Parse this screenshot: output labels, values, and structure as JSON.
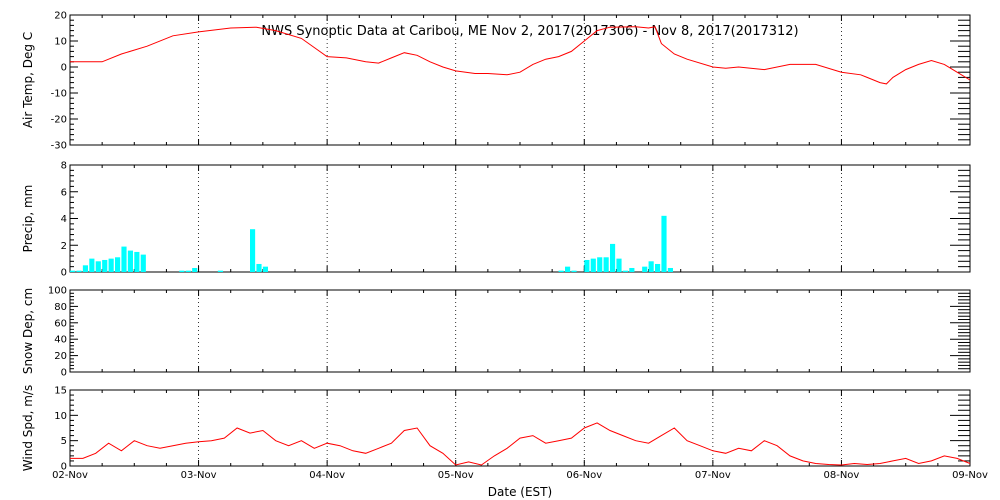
{
  "chart_data": {
    "type": "multi-panel time series",
    "title": "NWS Synoptic Data at Caribou, ME   Nov  2, 2017(2017306) - Nov  8, 2017(2017312)",
    "xlabel": "Date (EST)",
    "x_tick_labels": [
      "02-Nov",
      "03-Nov",
      "04-Nov",
      "05-Nov",
      "06-Nov",
      "07-Nov",
      "08-Nov",
      "09-Nov"
    ],
    "xlim_days": [
      0,
      7
    ],
    "grid": "dotted vertical lines at each day",
    "colors": {
      "temperature": "#ff0000",
      "wind": "#ff0000",
      "precip": "#00ffff",
      "axes": "#000000"
    },
    "panels": [
      {
        "id": "temp",
        "type": "line",
        "ylabel": "Air Temp, Deg C",
        "ylim": [
          -30,
          20
        ],
        "y_ticks": [
          -30,
          -20,
          -10,
          0,
          10,
          20
        ],
        "series": [
          {
            "values": [
              [
                0,
                2
              ],
              [
                0.25,
                2
              ],
              [
                0.4,
                5
              ],
              [
                0.6,
                8
              ],
              [
                0.8,
                12
              ],
              [
                1.0,
                13.5
              ],
              [
                1.25,
                15
              ],
              [
                1.45,
                15.3
              ],
              [
                1.6,
                14
              ],
              [
                1.8,
                11
              ],
              [
                2.0,
                4
              ],
              [
                2.15,
                3.5
              ],
              [
                2.3,
                2
              ],
              [
                2.4,
                1.5
              ],
              [
                2.5,
                3.5
              ],
              [
                2.6,
                5.5
              ],
              [
                2.7,
                4.5
              ],
              [
                2.8,
                2
              ],
              [
                2.9,
                0
              ],
              [
                3.0,
                -1.5
              ],
              [
                3.15,
                -2.5
              ],
              [
                3.25,
                -2.5
              ],
              [
                3.4,
                -3
              ],
              [
                3.5,
                -2
              ],
              [
                3.6,
                1
              ],
              [
                3.7,
                3
              ],
              [
                3.8,
                4
              ],
              [
                3.9,
                6
              ],
              [
                4.0,
                10
              ],
              [
                4.1,
                14
              ],
              [
                4.2,
                15.3
              ],
              [
                4.4,
                15.5
              ],
              [
                4.5,
                15
              ],
              [
                4.55,
                15.5
              ],
              [
                4.6,
                9
              ],
              [
                4.7,
                5
              ],
              [
                4.8,
                3
              ],
              [
                5.0,
                0
              ],
              [
                5.1,
                -0.5
              ],
              [
                5.2,
                0
              ],
              [
                5.4,
                -1
              ],
              [
                5.6,
                1
              ],
              [
                5.8,
                1
              ],
              [
                6.0,
                -2
              ],
              [
                6.15,
                -3
              ],
              [
                6.2,
                -4
              ],
              [
                6.3,
                -6
              ],
              [
                6.35,
                -6.5
              ],
              [
                6.4,
                -4
              ],
              [
                6.5,
                -1
              ],
              [
                6.6,
                1
              ],
              [
                6.7,
                2.5
              ],
              [
                6.8,
                1
              ],
              [
                6.9,
                -2
              ],
              [
                7.0,
                -5
              ]
            ]
          }
        ]
      },
      {
        "id": "precip",
        "type": "bar",
        "ylabel": "Precip, mm",
        "ylim": [
          0,
          8
        ],
        "y_ticks": [
          0,
          2,
          4,
          6,
          8
        ],
        "bar_width_days": 0.04,
        "series": [
          {
            "values": [
              [
                0.0,
                0.1
              ],
              [
                0.05,
                0.1
              ],
              [
                0.1,
                0.5
              ],
              [
                0.15,
                1.0
              ],
              [
                0.2,
                0.8
              ],
              [
                0.25,
                0.9
              ],
              [
                0.3,
                1.0
              ],
              [
                0.35,
                1.1
              ],
              [
                0.4,
                1.9
              ],
              [
                0.45,
                1.6
              ],
              [
                0.5,
                1.5
              ],
              [
                0.55,
                1.3
              ],
              [
                0.85,
                0.1
              ],
              [
                0.9,
                0.1
              ],
              [
                0.95,
                0.3
              ],
              [
                1.15,
                0.1
              ],
              [
                1.4,
                3.2
              ],
              [
                1.45,
                0.6
              ],
              [
                1.5,
                0.4
              ],
              [
                3.8,
                0.1
              ],
              [
                3.85,
                0.4
              ],
              [
                3.9,
                0.1
              ],
              [
                4.0,
                0.9
              ],
              [
                4.05,
                1.0
              ],
              [
                4.1,
                1.1
              ],
              [
                4.15,
                1.1
              ],
              [
                4.2,
                2.1
              ],
              [
                4.25,
                1.0
              ],
              [
                4.3,
                0.1
              ],
              [
                4.35,
                0.3
              ],
              [
                4.45,
                0.4
              ],
              [
                4.5,
                0.8
              ],
              [
                4.55,
                0.6
              ],
              [
                4.6,
                4.2
              ],
              [
                4.65,
                0.3
              ]
            ]
          }
        ]
      },
      {
        "id": "snow",
        "type": "line",
        "ylabel": "Snow Dep, cm",
        "ylim": [
          0,
          100
        ],
        "y_ticks": [
          0,
          20,
          40,
          60,
          80,
          100
        ],
        "series": []
      },
      {
        "id": "wind",
        "type": "line",
        "ylabel": "Wind Spd, m/s",
        "ylim": [
          0,
          15
        ],
        "y_ticks": [
          0,
          5,
          10,
          15
        ],
        "series": [
          {
            "values": [
              [
                0,
                1.5
              ],
              [
                0.1,
                1.5
              ],
              [
                0.2,
                2.5
              ],
              [
                0.3,
                4.5
              ],
              [
                0.4,
                3
              ],
              [
                0.5,
                5
              ],
              [
                0.6,
                4
              ],
              [
                0.7,
                3.5
              ],
              [
                0.8,
                4
              ],
              [
                0.9,
                4.5
              ],
              [
                1.0,
                4.8
              ],
              [
                1.1,
                5
              ],
              [
                1.2,
                5.5
              ],
              [
                1.3,
                7.5
              ],
              [
                1.4,
                6.5
              ],
              [
                1.5,
                7
              ],
              [
                1.6,
                5
              ],
              [
                1.7,
                4
              ],
              [
                1.8,
                5
              ],
              [
                1.9,
                3.5
              ],
              [
                2.0,
                4.5
              ],
              [
                2.1,
                4
              ],
              [
                2.2,
                3
              ],
              [
                2.3,
                2.5
              ],
              [
                2.4,
                3.5
              ],
              [
                2.5,
                4.5
              ],
              [
                2.6,
                7
              ],
              [
                2.7,
                7.5
              ],
              [
                2.8,
                4
              ],
              [
                2.9,
                2.5
              ],
              [
                3.0,
                0.2
              ],
              [
                3.1,
                0.8
              ],
              [
                3.2,
                0.2
              ],
              [
                3.3,
                2
              ],
              [
                3.4,
                3.5
              ],
              [
                3.5,
                5.5
              ],
              [
                3.6,
                6
              ],
              [
                3.7,
                4.5
              ],
              [
                3.8,
                5
              ],
              [
                3.9,
                5.5
              ],
              [
                4.0,
                7.5
              ],
              [
                4.1,
                8.5
              ],
              [
                4.2,
                7
              ],
              [
                4.3,
                6
              ],
              [
                4.4,
                5
              ],
              [
                4.5,
                4.5
              ],
              [
                4.6,
                6
              ],
              [
                4.7,
                7.5
              ],
              [
                4.8,
                5
              ],
              [
                4.9,
                4
              ],
              [
                5.0,
                3
              ],
              [
                5.1,
                2.5
              ],
              [
                5.2,
                3.5
              ],
              [
                5.3,
                3
              ],
              [
                5.4,
                5
              ],
              [
                5.5,
                4
              ],
              [
                5.6,
                2
              ],
              [
                5.7,
                1
              ],
              [
                5.8,
                0.5
              ],
              [
                5.9,
                0.3
              ],
              [
                6.0,
                0.2
              ],
              [
                6.1,
                0.5
              ],
              [
                6.2,
                0.3
              ],
              [
                6.3,
                0.5
              ],
              [
                6.4,
                1
              ],
              [
                6.5,
                1.5
              ],
              [
                6.6,
                0.5
              ],
              [
                6.7,
                1
              ],
              [
                6.8,
                2
              ],
              [
                6.9,
                1.5
              ],
              [
                7.0,
                0.5
              ]
            ]
          }
        ]
      }
    ]
  }
}
